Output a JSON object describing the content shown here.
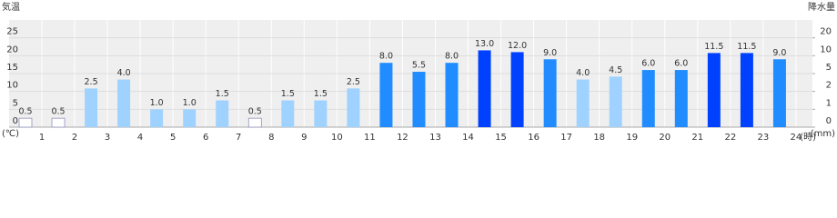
{
  "chart_data": {
    "type": "bar",
    "title_left": "気温",
    "title_right": "降水量",
    "unit_left": "(℃)",
    "unit_right": "(mm)",
    "unit_x": "(時)",
    "categories": [
      1,
      2,
      3,
      4,
      5,
      6,
      7,
      8,
      9,
      10,
      11,
      12,
      13,
      14,
      15,
      16,
      17,
      18,
      19,
      20,
      21,
      22,
      23,
      24
    ],
    "values": [
      0.5,
      0.5,
      2.5,
      4.0,
      1.0,
      1.0,
      1.5,
      0.5,
      1.5,
      1.5,
      2.5,
      8.0,
      5.5,
      8.0,
      13.0,
      12.0,
      9.0,
      4.0,
      4.5,
      6.0,
      6.0,
      11.5,
      11.5,
      9.0
    ],
    "value_labels": [
      "0.5",
      "0.5",
      "2.5",
      "4.0",
      "1.0",
      "1.0",
      "1.5",
      "0.5",
      "1.5",
      "1.5",
      "2.5",
      "8.0",
      "5.5",
      "8.0",
      "13.0",
      "12.0",
      "9.0",
      "4.0",
      "4.5",
      "6.0",
      "6.0",
      "11.5",
      "11.5",
      "9.0"
    ],
    "colors": [
      "#ffffff",
      "#ffffff",
      "#a0d2ff",
      "#a0d2ff",
      "#a0d2ff",
      "#a0d2ff",
      "#a0d2ff",
      "#ffffff",
      "#a0d2ff",
      "#a0d2ff",
      "#a0d2ff",
      "#218cff",
      "#218cff",
      "#218cff",
      "#0041ff",
      "#0041ff",
      "#218cff",
      "#a0d2ff",
      "#a0d2ff",
      "#218cff",
      "#218cff",
      "#0041ff",
      "#0041ff",
      "#218cff"
    ],
    "ylim": [
      0,
      30
    ],
    "yticks": [
      0,
      5,
      10,
      15,
      20,
      25
    ],
    "y2lim": [
      0,
      20
    ],
    "y2ticks": [
      0,
      1,
      2,
      5,
      10,
      20
    ],
    "grid": true
  }
}
